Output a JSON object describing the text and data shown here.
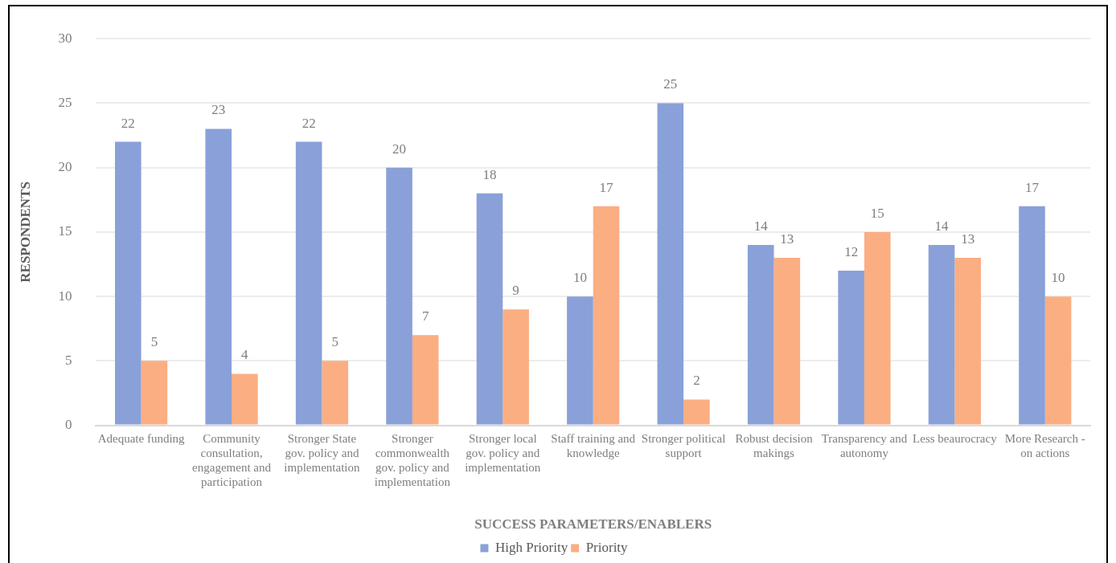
{
  "chart_data": {
    "type": "bar",
    "xlabel": "SUCCESS PARAMETERS/ENABLERS",
    "ylabel": "RESPONDENTS",
    "categories": [
      "Adequate funding",
      "Community consultation, engagement and participation",
      "Stronger State gov. policy and implementation",
      "Stronger commonwealth gov. policy and implementation",
      "Stronger local gov. policy and implementation",
      "Staff training and knowledge",
      "Stronger political support",
      "Robust decision makings",
      "Transparency and autonomy",
      "Less beaurocracy",
      "More Research - on actions"
    ],
    "series": [
      {
        "name": "High Priority",
        "color": "#8aa0d8",
        "values": [
          22,
          23,
          22,
          20,
          18,
          10,
          25,
          14,
          12,
          14,
          17
        ]
      },
      {
        "name": "Priority",
        "color": "#fbae82",
        "values": [
          5,
          4,
          5,
          7,
          9,
          17,
          2,
          13,
          15,
          13,
          10
        ]
      }
    ],
    "ylim": [
      0,
      30
    ],
    "yticks": [
      0,
      5,
      10,
      15,
      20,
      25,
      30
    ],
    "grid": "y",
    "legend": "bottom",
    "data_labels": true
  }
}
